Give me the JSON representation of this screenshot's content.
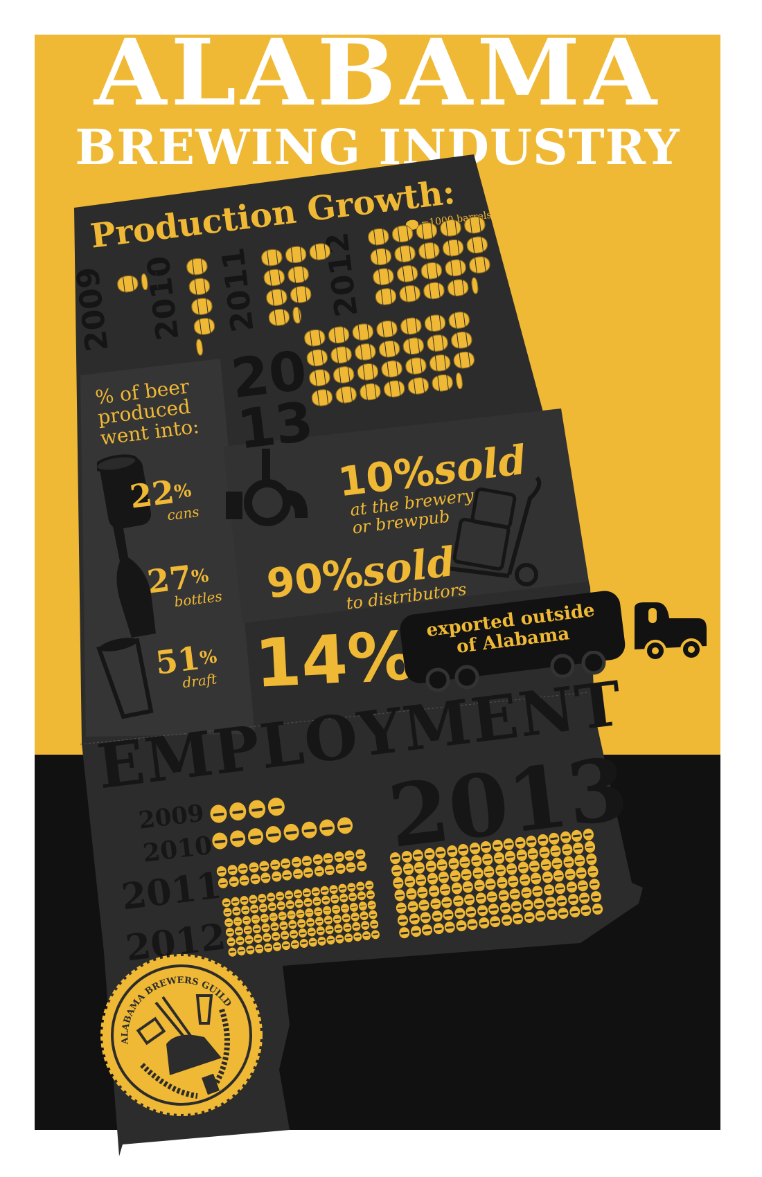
{
  "title": {
    "line1": "ALABAMA",
    "line2": "BREWING INDUSTRY"
  },
  "colors": {
    "accent": "#f0b935",
    "panel": "#2d2c2c",
    "ink": "#161616",
    "background_bottom": "#111111"
  },
  "production": {
    "heading": "Production Growth:",
    "legend": "=1000 barrels",
    "legend_icon": "barrel-icon",
    "years": [
      {
        "year": "2009",
        "barrels": 1.3
      },
      {
        "year": "2010",
        "barrels": 4.3
      },
      {
        "year": "2011",
        "barrels": 8.4
      },
      {
        "year": "2012",
        "barrels": 19.3
      },
      {
        "year_top": "20",
        "year_bottom": "13",
        "barrels": 27.3
      }
    ]
  },
  "packaging": {
    "heading_line1": "% of beer",
    "heading_line2": "produced",
    "heading_line3": "went into:",
    "items": [
      {
        "percent": "22",
        "unit": "%",
        "label": "cans",
        "icon": "can-icon"
      },
      {
        "percent": "27",
        "unit": "%",
        "label": "bottles",
        "icon": "bottle-icon"
      },
      {
        "percent": "51",
        "unit": "%",
        "label": "draft",
        "icon": "pint-glass-icon"
      }
    ]
  },
  "sales": [
    {
      "percent": "10%",
      "word": "sold",
      "detail_line1": "at the brewery",
      "detail_line2": "or brewpub",
      "icon": "tap-handle-icon"
    },
    {
      "percent": "90%",
      "word": "sold",
      "detail_line1": "to distributors",
      "icon": "hand-truck-icon"
    }
  ],
  "export": {
    "percent": "14%",
    "text_line1": "exported outside",
    "text_line2": "of Alabama",
    "icon": "truck-icon"
  },
  "employment": {
    "heading": "EMPLOYMENT",
    "highlight_year": "2013",
    "years": [
      {
        "year": "2009",
        "employees": 4
      },
      {
        "year": "2010",
        "employees": 8
      },
      {
        "year": "2011",
        "employees": 28
      },
      {
        "year": "2012",
        "employees": 102
      },
      {
        "year": "2013",
        "employees": 126
      }
    ]
  },
  "badge": {
    "text": "ALABAMA BREWERS GUILD"
  }
}
